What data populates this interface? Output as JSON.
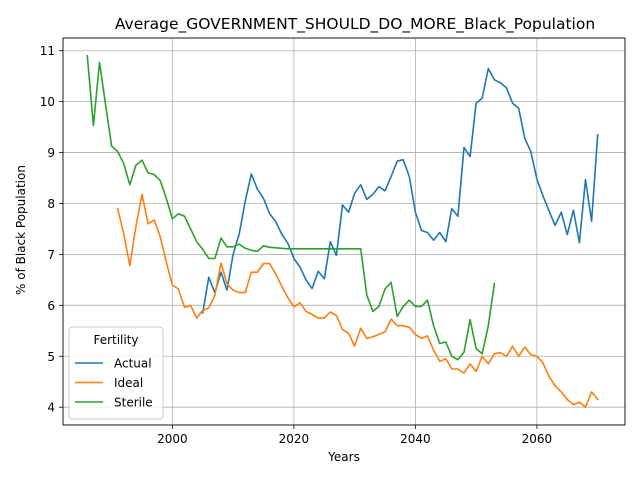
{
  "chart_data": {
    "type": "line",
    "title": "Average_GOVERNMENT_SHOULD_DO_MORE_Black_Population",
    "xlabel": "Years",
    "ylabel": "% of Black Population",
    "xlim": [
      1982,
      2074.5
    ],
    "ylim": [
      3.65,
      11.25
    ],
    "xticks": [
      2000,
      2020,
      2040,
      2060
    ],
    "yticks": [
      4,
      5,
      6,
      7,
      8,
      9,
      10,
      11
    ],
    "grid": true,
    "legend": {
      "title": "Fertility",
      "position": "lower-left"
    },
    "series": [
      {
        "name": "Actual",
        "color": "#1f77b4",
        "x": [
          2005,
          2006,
          2007,
          2008,
          2009,
          2010,
          2011,
          2012,
          2013,
          2014,
          2015,
          2016,
          2017,
          2018,
          2019,
          2020,
          2021,
          2022,
          2023,
          2024,
          2025,
          2026,
          2027,
          2028,
          2029,
          2030,
          2031,
          2032,
          2033,
          2034,
          2035,
          2036,
          2037,
          2038,
          2039,
          2040,
          2041,
          2042,
          2043,
          2044,
          2045,
          2046,
          2047,
          2048,
          2049,
          2050,
          2051,
          2052,
          2053,
          2054,
          2055,
          2056,
          2057,
          2058,
          2059,
          2060,
          2061,
          2062,
          2063,
          2064,
          2065,
          2066,
          2067,
          2068,
          2069,
          2070
        ],
        "y": [
          5.85,
          6.55,
          6.25,
          6.65,
          6.3,
          7.0,
          7.4,
          8.05,
          8.58,
          8.28,
          8.1,
          7.8,
          7.65,
          7.4,
          7.22,
          6.92,
          6.75,
          6.5,
          6.33,
          6.67,
          6.52,
          7.25,
          6.98,
          7.97,
          7.83,
          8.2,
          8.37,
          8.08,
          8.18,
          8.33,
          8.25,
          8.53,
          8.83,
          8.86,
          8.53,
          7.83,
          7.47,
          7.43,
          7.28,
          7.43,
          7.25,
          7.9,
          7.75,
          9.1,
          8.92,
          9.97,
          10.07,
          10.65,
          10.43,
          10.37,
          10.27,
          9.97,
          9.87,
          9.28,
          9.02,
          8.48,
          8.15,
          7.85,
          7.57,
          7.83,
          7.39,
          7.87,
          7.23,
          8.47,
          7.65,
          9.35
        ]
      },
      {
        "name": "Ideal",
        "color": "#ff7f0e",
        "x": [
          1991,
          1992,
          1993,
          1994,
          1995,
          1996,
          1997,
          1998,
          1999,
          2000,
          2001,
          2002,
          2003,
          2004,
          2005,
          2006,
          2007,
          2008,
          2009,
          2010,
          2011,
          2012,
          2013,
          2014,
          2015,
          2016,
          2017,
          2018,
          2019,
          2020,
          2021,
          2022,
          2023,
          2024,
          2025,
          2026,
          2027,
          2028,
          2029,
          2030,
          2031,
          2032,
          2033,
          2034,
          2035,
          2036,
          2037,
          2038,
          2039,
          2040,
          2041,
          2042,
          2043,
          2044,
          2045,
          2046,
          2047,
          2048,
          2049,
          2050,
          2051,
          2052,
          2053,
          2054,
          2055,
          2056,
          2057,
          2058,
          2059,
          2060,
          2061,
          2062,
          2063,
          2064,
          2065,
          2066,
          2067,
          2068,
          2069,
          2070
        ],
        "y": [
          7.9,
          7.4,
          6.78,
          7.55,
          8.18,
          7.6,
          7.68,
          7.35,
          6.85,
          6.4,
          6.32,
          5.96,
          6.0,
          5.75,
          5.9,
          5.95,
          6.2,
          6.83,
          6.42,
          6.3,
          6.25,
          6.25,
          6.65,
          6.65,
          6.82,
          6.82,
          6.62,
          6.38,
          6.15,
          5.97,
          6.05,
          5.88,
          5.82,
          5.75,
          5.75,
          5.87,
          5.8,
          5.53,
          5.45,
          5.2,
          5.55,
          5.35,
          5.38,
          5.43,
          5.48,
          5.73,
          5.6,
          5.6,
          5.57,
          5.43,
          5.35,
          5.4,
          5.12,
          4.9,
          4.95,
          4.75,
          4.75,
          4.67,
          4.85,
          4.7,
          5.0,
          4.85,
          5.05,
          5.07,
          5.0,
          5.2,
          5.0,
          5.18,
          5.03,
          5.0,
          4.87,
          4.6,
          4.42,
          4.3,
          4.15,
          4.05,
          4.1,
          4.0,
          4.3,
          4.15
        ]
      },
      {
        "name": "Sterile",
        "color": "#2ca02c",
        "x": [
          1986,
          1987,
          1988,
          1989,
          1990,
          1991,
          1992,
          1993,
          1994,
          1995,
          1996,
          1997,
          1998,
          1999,
          2000,
          2001,
          2002,
          2003,
          2004,
          2005,
          2006,
          2007,
          2008,
          2009,
          2010,
          2011,
          2012,
          2013,
          2014,
          2015,
          2016,
          2017,
          2018,
          2019,
          2020,
          2021,
          2022,
          2023,
          2024,
          2025,
          2026,
          2027,
          2028,
          2029,
          2030,
          2031,
          2032,
          2033,
          2034,
          2035,
          2036,
          2037,
          2038,
          2039,
          2040,
          2041,
          2042,
          2043,
          2044,
          2045,
          2046,
          2047,
          2048,
          2049,
          2050,
          2051,
          2052,
          2053
        ],
        "y": [
          10.9,
          9.53,
          10.77,
          9.95,
          9.13,
          9.02,
          8.78,
          8.37,
          8.75,
          8.85,
          8.6,
          8.57,
          8.45,
          8.1,
          7.7,
          7.8,
          7.75,
          7.5,
          7.25,
          7.1,
          6.92,
          6.92,
          7.32,
          7.15,
          7.15,
          7.2,
          7.12,
          7.08,
          7.06,
          7.17,
          7.14,
          7.13,
          7.12,
          7.11,
          7.11,
          7.11,
          7.11,
          7.11,
          7.11,
          7.11,
          7.11,
          7.11,
          7.11,
          7.11,
          7.11,
          7.11,
          6.2,
          5.88,
          5.98,
          6.32,
          6.45,
          5.78,
          5.98,
          6.1,
          5.98,
          5.98,
          6.1,
          5.6,
          5.25,
          5.28,
          5.0,
          4.93,
          5.08,
          5.72,
          5.15,
          5.05,
          5.6,
          6.43
        ]
      }
    ]
  }
}
